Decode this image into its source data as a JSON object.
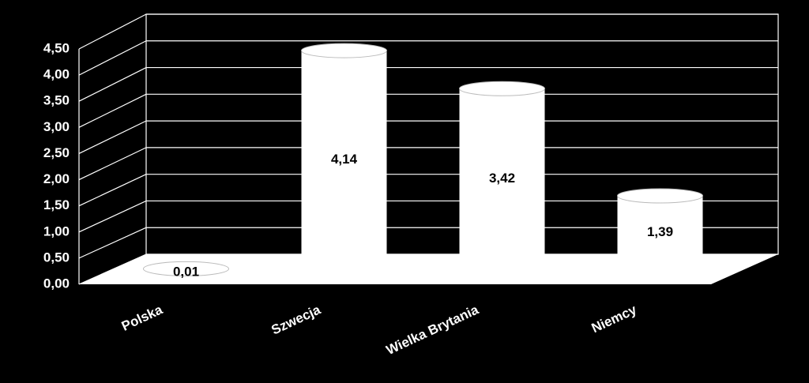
{
  "chart_data": {
    "type": "bar",
    "categories": [
      "Polska",
      "Szwecja",
      "Wielka Brytania",
      "Niemcy"
    ],
    "values": [
      0.01,
      4.14,
      3.42,
      1.39
    ],
    "value_labels": [
      "0,01",
      "4,14",
      "3,42",
      "1,39"
    ],
    "color": "#ffffff",
    "ylim": [
      0,
      4.5
    ],
    "yticks": [
      {
        "value": 0,
        "label": "0,00"
      },
      {
        "value": 0.5,
        "label": "0,50"
      },
      {
        "value": 1,
        "label": "1,00"
      },
      {
        "value": 1.5,
        "label": "1,50"
      },
      {
        "value": 2,
        "label": "2,00"
      },
      {
        "value": 2.5,
        "label": "2,50"
      },
      {
        "value": 3,
        "label": "3,00"
      },
      {
        "value": 3.5,
        "label": "3,50"
      },
      {
        "value": 4,
        "label": "4,00"
      },
      {
        "value": 4.5,
        "label": "4,50"
      }
    ],
    "grid": true
  }
}
